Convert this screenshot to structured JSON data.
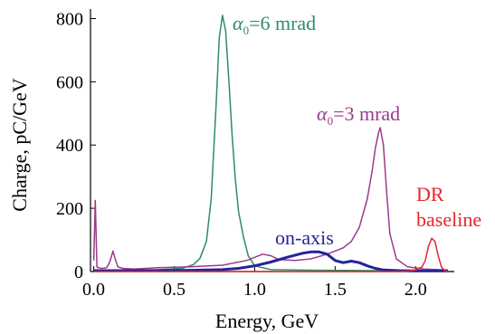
{
  "chart_data": {
    "type": "line",
    "xlabel": "Energy, GeV",
    "ylabel": "Charge, pC/GeV",
    "xlim": [
      -0.02,
      2.24
    ],
    "ylim": [
      0,
      830
    ],
    "x_ticks": [
      "0.0",
      "0.5",
      "1.0",
      "1.5",
      "2.0"
    ],
    "y_ticks": [
      "0",
      "200",
      "400",
      "600",
      "800"
    ],
    "grid": false,
    "series": [
      {
        "label": "α0=6 mrad",
        "color": "#2e8b6a",
        "x": [
          0.0,
          0.2,
          0.4,
          0.55,
          0.62,
          0.66,
          0.7,
          0.73,
          0.76,
          0.78,
          0.8,
          0.82,
          0.84,
          0.86,
          0.88,
          0.9,
          0.93,
          0.96,
          1.0,
          1.1,
          1.4,
          1.8,
          2.2
        ],
        "y": [
          5,
          5,
          6,
          10,
          22,
          42,
          95,
          230,
          520,
          740,
          810,
          760,
          600,
          430,
          290,
          190,
          110,
          50,
          18,
          6,
          4,
          3,
          3
        ]
      },
      {
        "label": "α0=3 mrad",
        "color": "#9b3a8c",
        "x": [
          0.0,
          0.01,
          0.02,
          0.03,
          0.05,
          0.08,
          0.1,
          0.12,
          0.13,
          0.15,
          0.18,
          0.25,
          0.4,
          0.6,
          0.8,
          0.95,
          1.05,
          1.1,
          1.15,
          1.25,
          1.35,
          1.45,
          1.55,
          1.6,
          1.65,
          1.7,
          1.73,
          1.75,
          1.77,
          1.78,
          1.8,
          1.82,
          1.84,
          1.88,
          1.95,
          2.05,
          2.2
        ],
        "y": [
          35,
          225,
          15,
          12,
          10,
          12,
          30,
          65,
          45,
          15,
          10,
          8,
          12,
          15,
          20,
          35,
          55,
          50,
          38,
          35,
          40,
          55,
          75,
          95,
          140,
          230,
          320,
          390,
          440,
          455,
          400,
          250,
          120,
          40,
          15,
          8,
          5
        ]
      },
      {
        "label": "on-axis",
        "color": "#22249a",
        "x": [
          0.0,
          0.2,
          0.4,
          0.6,
          0.8,
          0.9,
          1.0,
          1.1,
          1.2,
          1.3,
          1.35,
          1.4,
          1.45,
          1.5,
          1.55,
          1.6,
          1.65,
          1.7,
          1.75,
          1.8,
          1.9,
          2.0,
          2.2
        ],
        "y": [
          3,
          3,
          3,
          4,
          6,
          10,
          18,
          30,
          45,
          58,
          62,
          62,
          55,
          35,
          28,
          33,
          28,
          18,
          10,
          5,
          3,
          2,
          2
        ]
      },
      {
        "label": "DR baseline",
        "color": "#e8242a",
        "x": [
          0.0,
          1.9,
          1.96,
          2.0,
          2.04,
          2.06,
          2.08,
          2.1,
          2.12,
          2.14,
          2.16,
          2.18,
          2.2
        ],
        "y": [
          0,
          0,
          2,
          5,
          15,
          35,
          80,
          105,
          95,
          50,
          15,
          3,
          0
        ]
      }
    ],
    "annotations": [
      {
        "main": "α",
        "sub": "0",
        "rest": "=6 mrad",
        "color": "#2e8b6a"
      },
      {
        "main": "α",
        "sub": "0",
        "rest": "=3 mrad",
        "color": "#9b3a8c"
      },
      {
        "text": "on-axis",
        "color": "#22249a"
      },
      {
        "text": "DR",
        "color": "#e8242a"
      },
      {
        "text": "baseline",
        "color": "#e8242a"
      }
    ]
  }
}
